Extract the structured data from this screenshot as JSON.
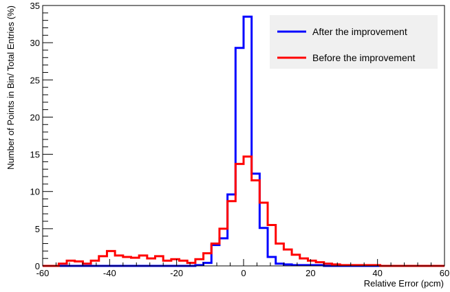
{
  "chart_data": {
    "type": "line",
    "title": "",
    "xlabel": "Relative Error (pcm)",
    "ylabel": "Number of Points in Bin/ Total Entries (%)",
    "xlim": [
      -60,
      60
    ],
    "ylim": [
      0,
      35
    ],
    "x_ticks": [
      -60,
      -40,
      -20,
      0,
      20,
      40,
      60
    ],
    "y_ticks": [
      0,
      5,
      10,
      15,
      20,
      25,
      30,
      35
    ],
    "grid": false,
    "legend_position": "top-right",
    "bin_edges": [
      -60,
      -57.6,
      -55.2,
      -52.8,
      -50.4,
      -48,
      -45.6,
      -43.2,
      -40.8,
      -38.4,
      -36,
      -33.6,
      -31.2,
      -28.8,
      -26.4,
      -24,
      -21.6,
      -19.2,
      -16.8,
      -14.4,
      -12,
      -9.6,
      -7.2,
      -4.8,
      -2.4,
      0,
      2.4,
      4.8,
      7.2,
      9.6,
      12,
      14.4,
      16.8,
      19.2,
      21.6,
      24,
      26.4,
      28.8,
      31.2,
      33.6,
      36,
      38.4,
      40.8,
      43.2,
      45.6,
      48,
      50.4,
      52.8,
      55.2,
      57.6,
      60
    ],
    "series": [
      {
        "name": "After the improvement",
        "color": "#0000ff",
        "values": [
          0,
          0,
          0,
          0,
          0,
          0,
          0,
          0,
          0,
          0,
          0,
          0,
          0,
          0,
          0,
          0,
          0,
          0,
          0,
          0.1,
          0.4,
          2.8,
          3.7,
          9.6,
          29.3,
          33.5,
          12.4,
          5.1,
          1.2,
          0.3,
          0.2,
          0.1,
          0.1,
          0.1,
          0.1,
          0,
          0,
          0,
          0,
          0,
          0,
          0,
          0,
          0,
          0,
          0,
          0,
          0,
          0,
          0
        ]
      },
      {
        "name": "Before the improvement",
        "color": "#ff0000",
        "values": [
          0,
          0,
          0.3,
          0.7,
          0.6,
          0.3,
          0.7,
          1.3,
          2.0,
          1.4,
          1.2,
          1.1,
          1.4,
          1.0,
          1.3,
          0.7,
          0.9,
          0.7,
          0.4,
          0.9,
          1.7,
          3.0,
          5.0,
          8.7,
          13.7,
          14.7,
          11.5,
          8.5,
          5.5,
          3.0,
          2.2,
          1.5,
          1.0,
          0.7,
          0.5,
          0.3,
          0.2,
          0.1,
          0.1,
          0.1,
          0.1,
          0.1,
          0,
          0,
          0,
          0,
          0,
          0,
          0,
          0
        ]
      }
    ]
  }
}
